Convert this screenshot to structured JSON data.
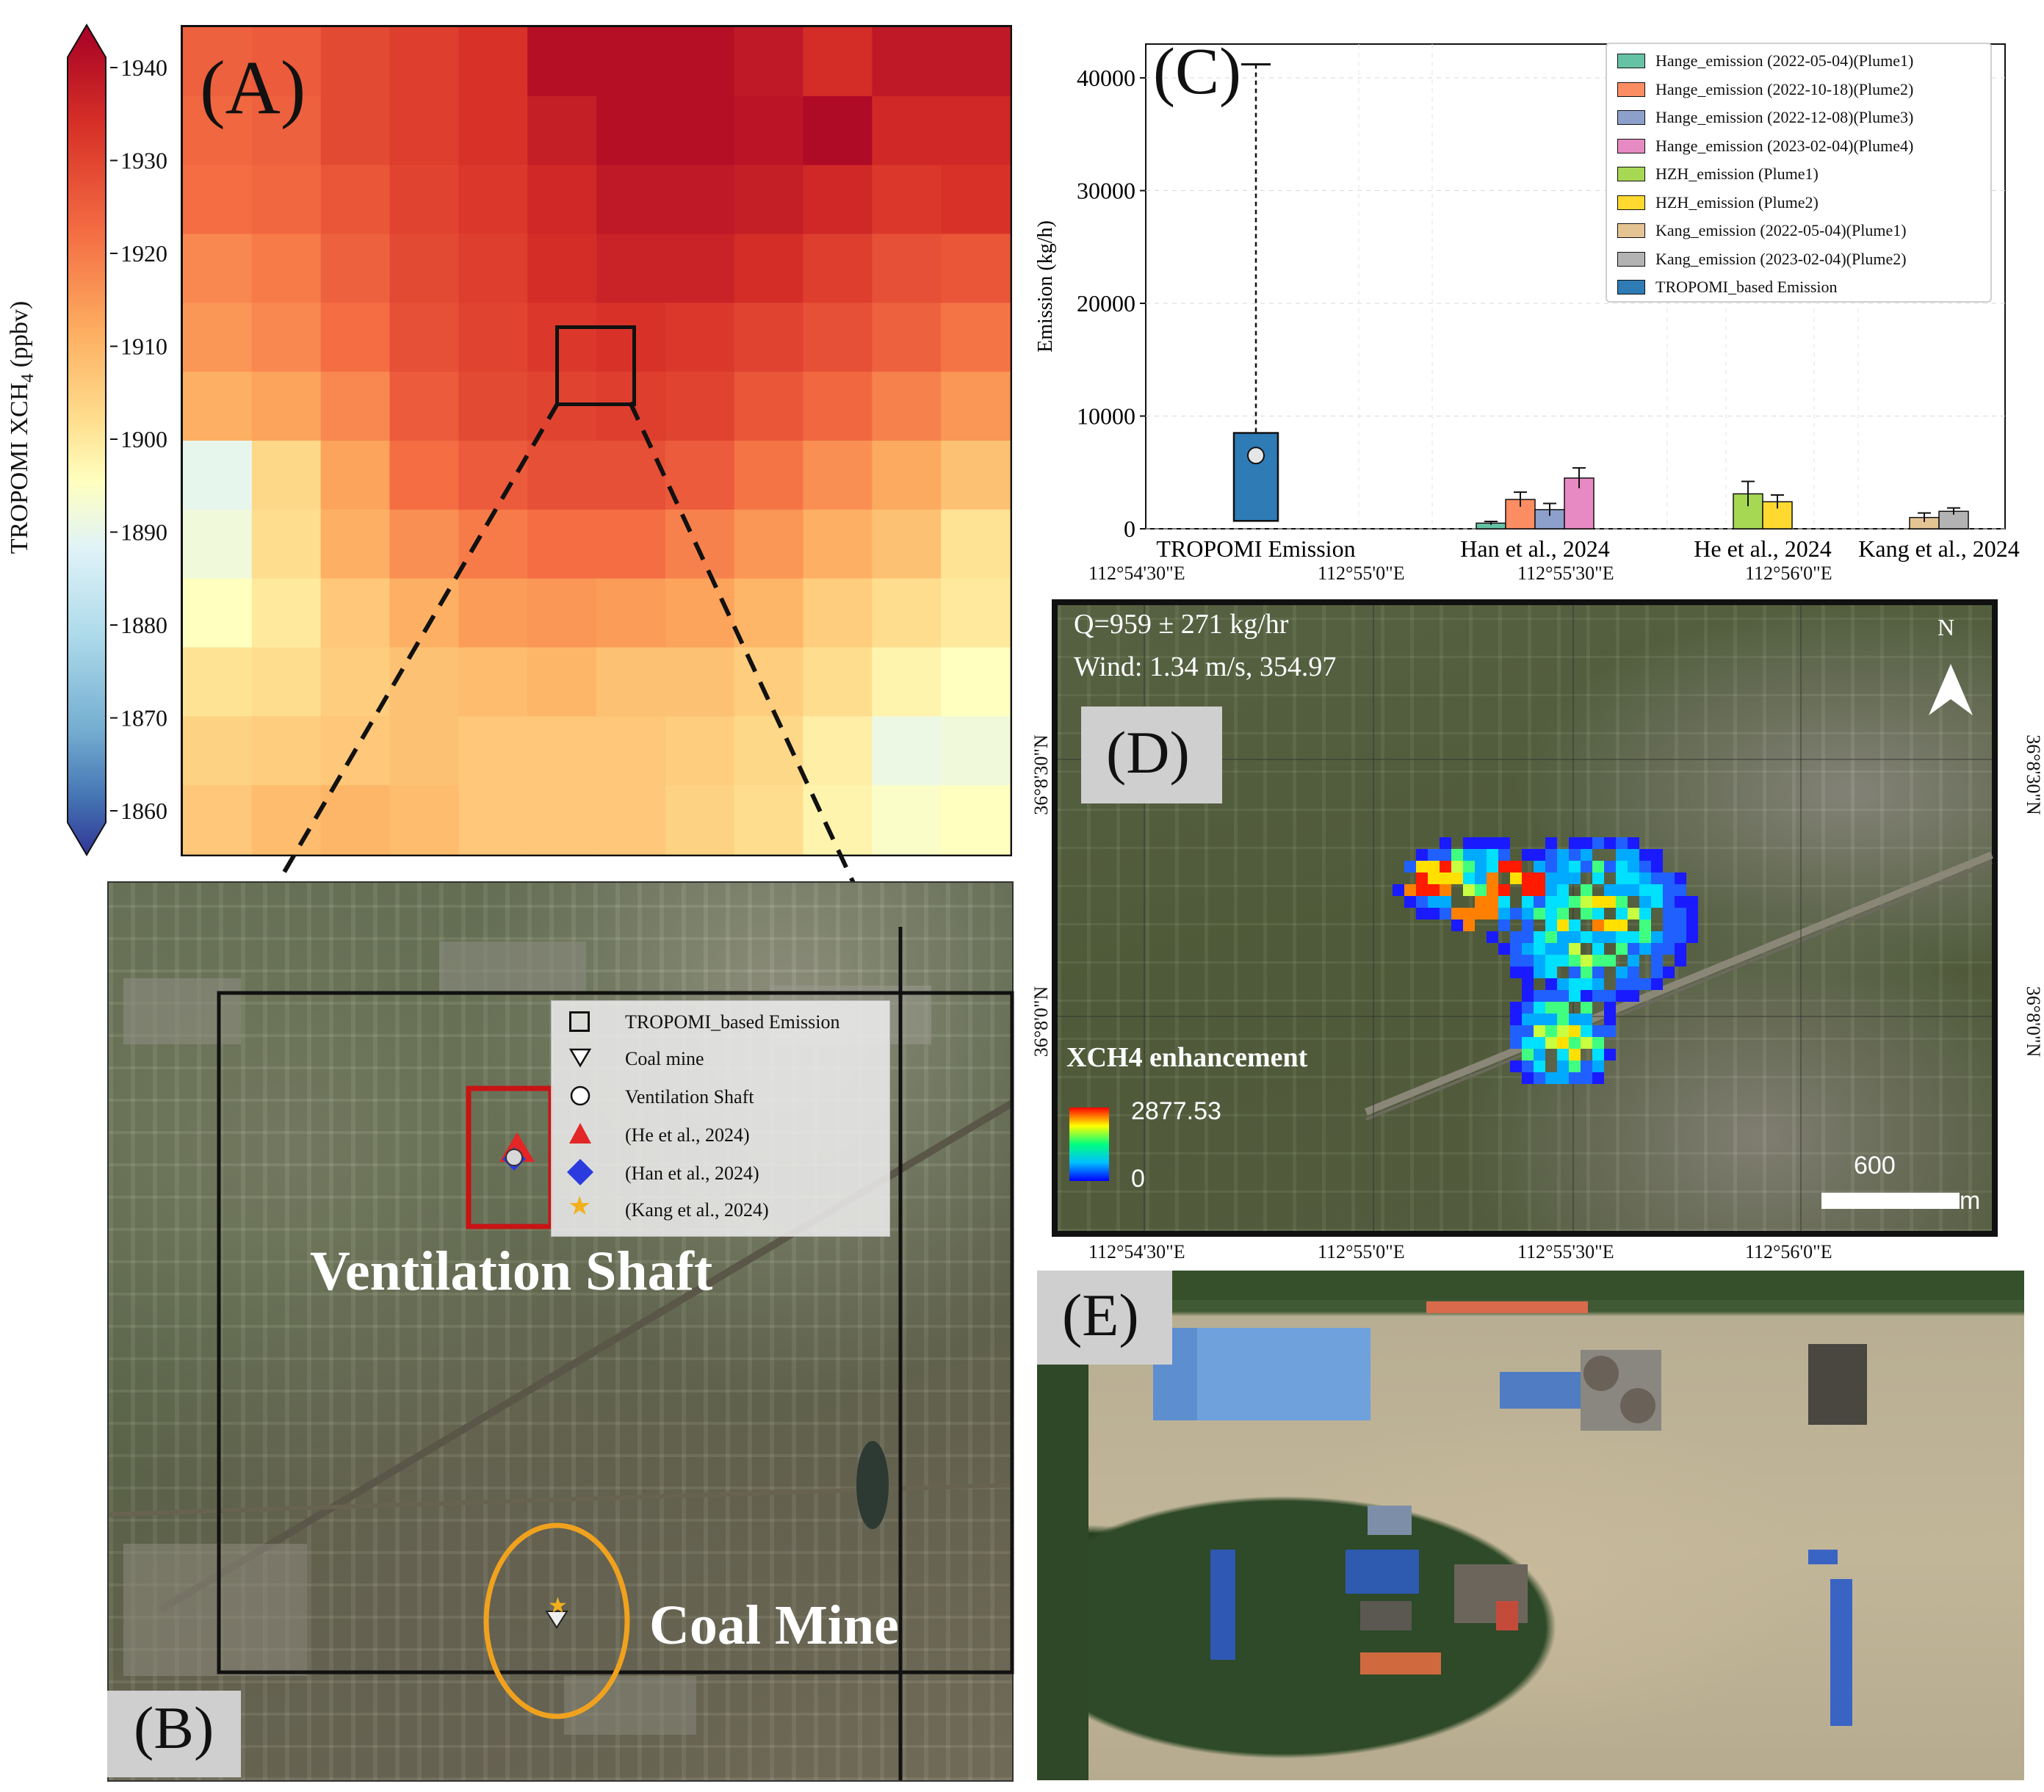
{
  "figure": {
    "panel_labels": {
      "a": "(A)",
      "b": "(B)",
      "c": "(C)",
      "d": "(D)",
      "e": "(E)"
    }
  },
  "panel_a": {
    "colorbar_label_main": "TROPOMI XCH",
    "colorbar_label_sub": "4",
    "colorbar_label_unit": " (ppbv)",
    "colorbar_ticks": [
      "1940",
      "1930",
      "1920",
      "1910",
      "1900",
      "1890",
      "1880",
      "1870",
      "1860"
    ],
    "color_low": "#313695",
    "color_mid": "#ffffbf",
    "color_high": "#a50026",
    "grid_values": [
      [
        1922,
        1923,
        1926,
        1928,
        1930,
        1937,
        1937,
        1937,
        1935,
        1931,
        1935,
        1935
      ],
      [
        1921,
        1922,
        1926,
        1928,
        1930,
        1934,
        1937,
        1937,
        1936,
        1938,
        1932,
        1932
      ],
      [
        1920,
        1921,
        1924,
        1927,
        1929,
        1932,
        1935,
        1935,
        1934,
        1932,
        1929,
        1930
      ],
      [
        1916,
        1918,
        1922,
        1926,
        1928,
        1931,
        1933,
        1933,
        1931,
        1928,
        1925,
        1924
      ],
      [
        1914,
        1916,
        1920,
        1925,
        1927,
        1929,
        1930,
        1929,
        1927,
        1925,
        1922,
        1919
      ],
      [
        1910,
        1912,
        1916,
        1923,
        1926,
        1927,
        1928,
        1927,
        1924,
        1921,
        1917,
        1914
      ],
      [
        1891,
        1903,
        1912,
        1920,
        1923,
        1925,
        1925,
        1923,
        1919,
        1915,
        1911,
        1907
      ],
      [
        1893,
        1902,
        1910,
        1915,
        1918,
        1920,
        1920,
        1917,
        1914,
        1910,
        1907,
        1901
      ],
      [
        1896,
        1900,
        1906,
        1910,
        1913,
        1914,
        1913,
        1912,
        1909,
        1905,
        1902,
        1900
      ],
      [
        1901,
        1902,
        1905,
        1907,
        1908,
        1909,
        1907,
        1907,
        1905,
        1902,
        1898,
        1896
      ],
      [
        1904,
        1905,
        1906,
        1907,
        1906,
        1906,
        1906,
        1905,
        1903,
        1899,
        1892,
        1893
      ],
      [
        1906,
        1908,
        1909,
        1908,
        1906,
        1906,
        1906,
        1904,
        1902,
        1898,
        1895,
        1896
      ]
    ]
  },
  "panel_b": {
    "legend": [
      "TROPOMI_based Emission",
      "Coal mine",
      "Ventilation Shaft",
      "(He et al., 2024)",
      "(Han et al., 2024)",
      "(Kang et al., 2024)"
    ],
    "label_shaft": "Ventilation Shaft",
    "label_mine": "Coal Mine"
  },
  "chart_data": [
    {
      "type": "bar",
      "title": "",
      "ylabel": "Emission (kg/h)",
      "ylim": [
        0,
        43000
      ],
      "yticks": [
        0,
        10000,
        20000,
        30000,
        40000
      ],
      "ytick_labels": [
        "0",
        "10000",
        "20000",
        "30000",
        "40000"
      ],
      "categories": [
        "TROPOMI Emission",
        "Han et al., 2024",
        "He et al., 2024",
        "Kang et al., 2024"
      ],
      "series": [
        {
          "name": "Hange_emission (2022-05-04)(Plume1)",
          "color": "#66c2a5",
          "category": "Han et al., 2024",
          "value": 500,
          "err": 150
        },
        {
          "name": "Hange_emission (2022-10-18)(Plume2)",
          "color": "#fc8d62",
          "category": "Han et al., 2024",
          "value": 2600,
          "err": 650
        },
        {
          "name": "Hange_emission (2022-12-08)(Plume3)",
          "color": "#8da0cb",
          "category": "Han et al., 2024",
          "value": 1700,
          "err": 550
        },
        {
          "name": "Hange_emission (2023-02-04)(Plume4)",
          "color": "#e78ac3",
          "category": "Han et al., 2024",
          "value": 4500,
          "err": 900
        },
        {
          "name": "HZH_emission (Plume1)",
          "color": "#a6d854",
          "category": "He et al., 2024",
          "value": 3100,
          "err": 1100
        },
        {
          "name": "HZH_emission (Plume2)",
          "color": "#ffd92f",
          "category": "He et al., 2024",
          "value": 2400,
          "err": 600
        },
        {
          "name": "Kang_emission (2022-05-04)(Plume1)",
          "color": "#e5c494",
          "category": "Kang et al., 2024",
          "value": 1000,
          "err": 400
        },
        {
          "name": "Kang_emission (2023-02-04)(Plume2)",
          "color": "#b3b3b3",
          "category": "Kang et al., 2024",
          "value": 1550,
          "err": 300
        },
        {
          "name": "TROPOMI_based Emission",
          "color": "#2e7bb6",
          "category": "TROPOMI Emission",
          "box": {
            "q1": 700,
            "q3": 8500,
            "whisker_low": 0,
            "whisker_high": 41200,
            "mean": 6500
          }
        }
      ],
      "legend_position": "top-right"
    },
    {
      "type": "heatmap",
      "title": "XCH4 enhancement",
      "colorbar_max": "2877.53",
      "colorbar_min": "0",
      "top_axis": [
        "112°54'30\"E",
        "112°55'0\"E",
        "112°55'30\"E",
        "112°56'0\"E"
      ],
      "bottom_axis": [
        "112°54'30\"E",
        "112°55'0\"E",
        "112°55'30\"E",
        "112°56'0\"E"
      ],
      "left_axis": [
        "36°8'30\"N",
        "36°8'0\"N"
      ],
      "right_axis": [
        "36°8'30\"N",
        "36°8'0\"N"
      ],
      "q_text": "Q=959 ± 271  kg/hr",
      "wind_text": "Wind: 1.34 m/s, 354.97",
      "north": "N",
      "scale_value": "600",
      "scale_unit": "m"
    }
  ]
}
